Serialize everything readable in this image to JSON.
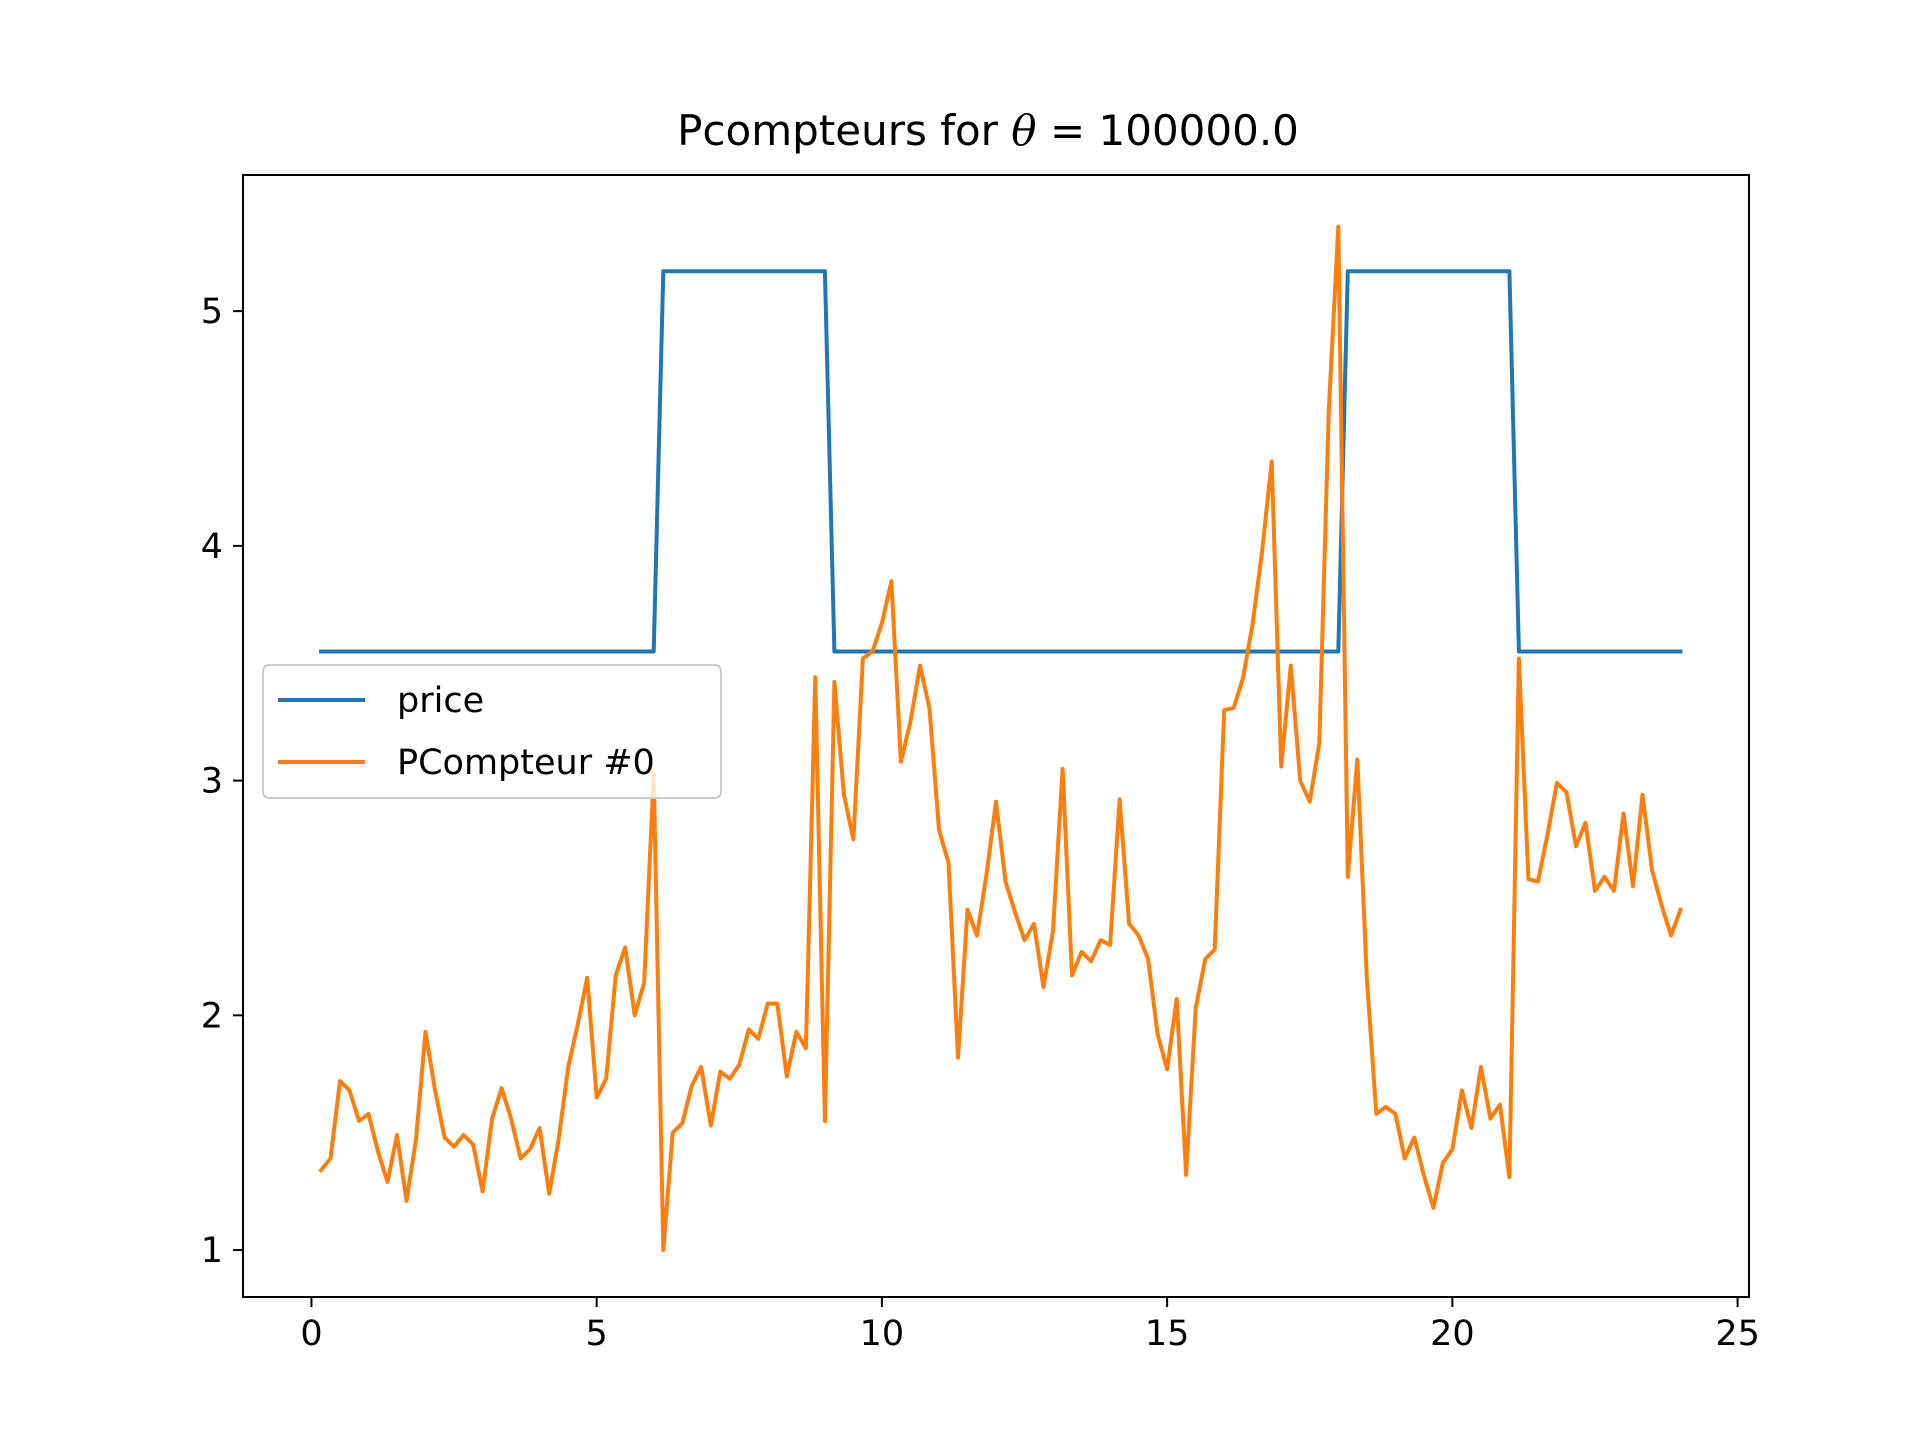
{
  "chart_data": {
    "type": "line",
    "title": {
      "prefix": "Pcompteurs for ",
      "symbol": "θ",
      "relation": " = ",
      "value": "100000.0"
    },
    "xlabel": "",
    "ylabel": "",
    "xlim": [
      -1.2,
      25.2
    ],
    "ylim": [
      0.8,
      5.58
    ],
    "xticks": [
      0,
      5,
      10,
      15,
      20,
      25
    ],
    "yticks": [
      1,
      2,
      3,
      4,
      5
    ],
    "grid": false,
    "legend_position": "center-left",
    "series": [
      {
        "name": "price",
        "color": "#1f77b4",
        "x": [
          0.167,
          6.0,
          6.167,
          9.0,
          9.167,
          18.0,
          18.167,
          21.0,
          21.167,
          24.0
        ],
        "y": [
          3.55,
          3.55,
          5.17,
          5.17,
          3.55,
          3.55,
          5.17,
          5.17,
          3.55,
          3.55
        ]
      },
      {
        "name": "PCompteur #0",
        "color": "#ff7f0e",
        "x": [
          0.167,
          0.333,
          0.5,
          0.667,
          0.833,
          1.0,
          1.167,
          1.333,
          1.5,
          1.667,
          1.833,
          2.0,
          2.167,
          2.333,
          2.5,
          2.667,
          2.833,
          3.0,
          3.167,
          3.333,
          3.5,
          3.667,
          3.833,
          4.0,
          4.167,
          4.333,
          4.5,
          4.667,
          4.833,
          5.0,
          5.167,
          5.333,
          5.5,
          5.667,
          5.833,
          6.0,
          6.167,
          6.333,
          6.5,
          6.667,
          6.833,
          7.0,
          7.167,
          7.333,
          7.5,
          7.667,
          7.833,
          8.0,
          8.167,
          8.333,
          8.5,
          8.667,
          8.833,
          9.0,
          9.167,
          9.333,
          9.5,
          9.667,
          9.833,
          10.0,
          10.167,
          10.333,
          10.5,
          10.667,
          10.833,
          11.0,
          11.167,
          11.333,
          11.5,
          11.667,
          11.833,
          12.0,
          12.167,
          12.333,
          12.5,
          12.667,
          12.833,
          13.0,
          13.167,
          13.333,
          13.5,
          13.667,
          13.833,
          14.0,
          14.167,
          14.333,
          14.5,
          14.667,
          14.833,
          15.0,
          15.167,
          15.333,
          15.5,
          15.667,
          15.833,
          16.0,
          16.167,
          16.333,
          16.5,
          16.667,
          16.833,
          17.0,
          17.167,
          17.333,
          17.5,
          17.667,
          17.833,
          18.0,
          18.167,
          18.333,
          18.5,
          18.667,
          18.833,
          19.0,
          19.167,
          19.333,
          19.5,
          19.667,
          19.833,
          20.0,
          20.167,
          20.333,
          20.5,
          20.667,
          20.833,
          21.0,
          21.167,
          21.333,
          21.5,
          21.667,
          21.833,
          22.0,
          22.167,
          22.333,
          22.5,
          22.667,
          22.833,
          23.0,
          23.167,
          23.333,
          23.5,
          23.667,
          23.833,
          24.0
        ],
        "y": [
          1.34,
          1.39,
          1.72,
          1.68,
          1.55,
          1.58,
          1.42,
          1.29,
          1.49,
          1.21,
          1.47,
          1.93,
          1.68,
          1.48,
          1.44,
          1.49,
          1.45,
          1.25,
          1.56,
          1.69,
          1.56,
          1.39,
          1.43,
          1.52,
          1.24,
          1.47,
          1.78,
          1.96,
          2.16,
          1.65,
          1.73,
          2.17,
          2.29,
          2.0,
          2.14,
          3.03,
          1.0,
          1.5,
          1.54,
          1.7,
          1.78,
          1.53,
          1.76,
          1.73,
          1.79,
          1.94,
          1.9,
          2.05,
          2.05,
          1.74,
          1.93,
          1.86,
          3.44,
          1.55,
          3.42,
          2.94,
          2.75,
          3.52,
          3.55,
          3.67,
          3.85,
          3.08,
          3.25,
          3.49,
          3.31,
          2.79,
          2.65,
          1.82,
          2.45,
          2.34,
          2.6,
          2.91,
          2.57,
          2.44,
          2.32,
          2.39,
          2.12,
          2.36,
          3.05,
          2.17,
          2.27,
          2.23,
          2.32,
          2.3,
          2.92,
          2.39,
          2.34,
          2.24,
          1.92,
          1.77,
          2.07,
          1.32,
          2.03,
          2.24,
          2.28,
          3.3,
          3.31,
          3.44,
          3.67,
          3.98,
          4.36,
          3.06,
          3.49,
          3.0,
          2.91,
          3.16,
          4.57,
          5.36,
          2.59,
          3.09,
          2.16,
          1.58,
          1.61,
          1.58,
          1.39,
          1.48,
          1.32,
          1.18,
          1.37,
          1.43,
          1.68,
          1.52,
          1.78,
          1.56,
          1.62,
          1.31,
          3.52,
          2.58,
          2.57,
          2.77,
          2.99,
          2.95,
          2.72,
          2.82,
          2.53,
          2.59,
          2.53,
          2.86,
          2.55,
          2.94,
          2.62,
          2.47,
          2.34,
          2.45
        ]
      }
    ]
  }
}
